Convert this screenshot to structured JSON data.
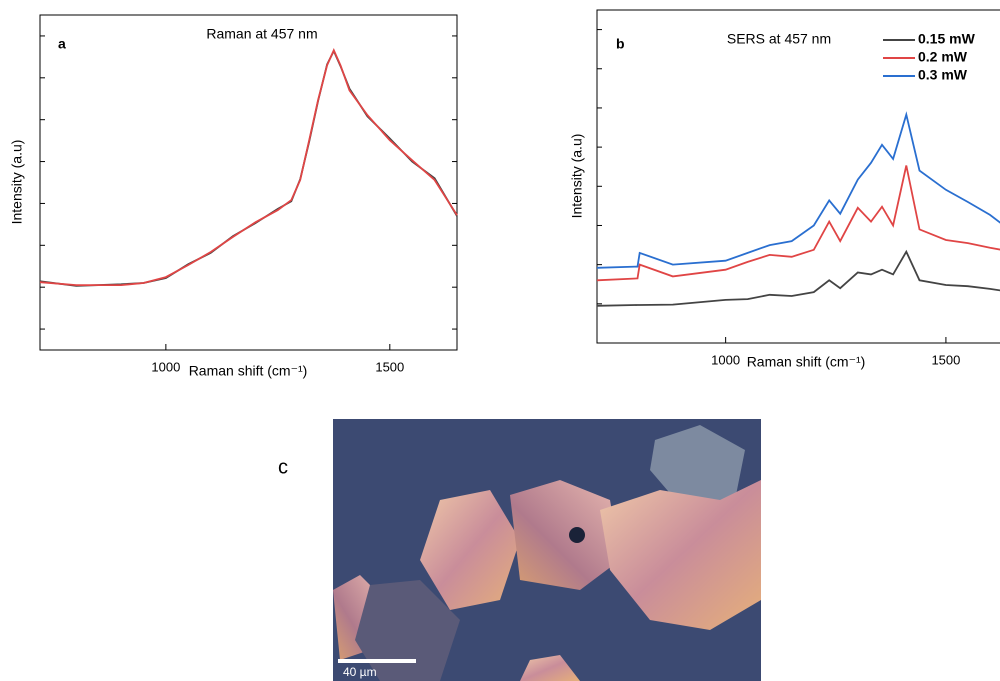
{
  "chart_data": [
    {
      "type": "line",
      "panel_label": "a",
      "title": "Raman at 457 nm",
      "x_label": "Raman shift (cm⁻¹)",
      "y_label": "Intensity (a.u)",
      "xlim": [
        719,
        1650
      ],
      "xticks": [
        1000,
        1500
      ],
      "ylim": [
        0,
        8
      ],
      "yticks": [
        0.5,
        1.5,
        2.5,
        3.5,
        4.5,
        5.5,
        6.5,
        7.5
      ],
      "ytick_labels": false,
      "x": [
        719,
        800,
        900,
        950,
        1000,
        1050,
        1100,
        1150,
        1200,
        1250,
        1280,
        1300,
        1320,
        1340,
        1360,
        1375,
        1390,
        1410,
        1450,
        1500,
        1550,
        1600,
        1650
      ],
      "series": [
        {
          "color": "#444444",
          "values": [
            1.64,
            1.53,
            1.57,
            1.6,
            1.72,
            2.05,
            2.32,
            2.72,
            3.03,
            3.37,
            3.55,
            4.08,
            4.98,
            5.95,
            6.82,
            7.14,
            6.78,
            6.24,
            5.58,
            5.05,
            4.5,
            4.1,
            3.2
          ]
        },
        {
          "color": "#e04545",
          "values": [
            1.62,
            1.55,
            1.55,
            1.6,
            1.74,
            2.03,
            2.34,
            2.7,
            3.05,
            3.34,
            3.58,
            4.06,
            5.01,
            5.97,
            6.8,
            7.16,
            6.8,
            6.2,
            5.61,
            5.01,
            4.53,
            4.06,
            3.22
          ]
        }
      ]
    },
    {
      "type": "line",
      "panel_label": "b",
      "title": "SERS at 457 nm",
      "x_label": "Raman shift (cm⁻¹)",
      "y_label": "Intensity (a.u)",
      "xlim": [
        708,
        1650
      ],
      "xticks": [
        1000,
        1500
      ],
      "ylim": [
        0,
        8.5
      ],
      "yticks": [
        1,
        2,
        3,
        4,
        5,
        6,
        7,
        8
      ],
      "ytick_labels": false,
      "x": [
        708,
        800,
        805,
        880,
        1000,
        1050,
        1100,
        1150,
        1200,
        1235,
        1260,
        1300,
        1330,
        1355,
        1380,
        1410,
        1440,
        1500,
        1550,
        1600,
        1650
      ],
      "series": [
        {
          "name": "0.15 mW",
          "color": "#444444",
          "values": [
            0.95,
            0.97,
            0.97,
            0.98,
            1.1,
            1.12,
            1.23,
            1.2,
            1.3,
            1.6,
            1.4,
            1.8,
            1.75,
            1.87,
            1.75,
            2.33,
            1.6,
            1.48,
            1.45,
            1.38,
            1.3
          ]
        },
        {
          "name": "0.2 mW",
          "color": "#e04545",
          "values": [
            1.6,
            1.65,
            2.0,
            1.7,
            1.87,
            2.07,
            2.25,
            2.2,
            2.38,
            3.1,
            2.6,
            3.45,
            3.1,
            3.48,
            3.0,
            4.53,
            2.9,
            2.63,
            2.55,
            2.43,
            2.33
          ]
        },
        {
          "name": "0.3 mW",
          "color": "#2a6fd0",
          "values": [
            1.92,
            1.95,
            2.3,
            2.0,
            2.1,
            2.3,
            2.5,
            2.6,
            3.0,
            3.64,
            3.3,
            4.17,
            4.6,
            5.06,
            4.7,
            5.83,
            4.4,
            3.91,
            3.6,
            3.27,
            2.84
          ]
        }
      ]
    }
  ],
  "image": {
    "panel_label": "c",
    "scale_bar": "40 µm"
  }
}
